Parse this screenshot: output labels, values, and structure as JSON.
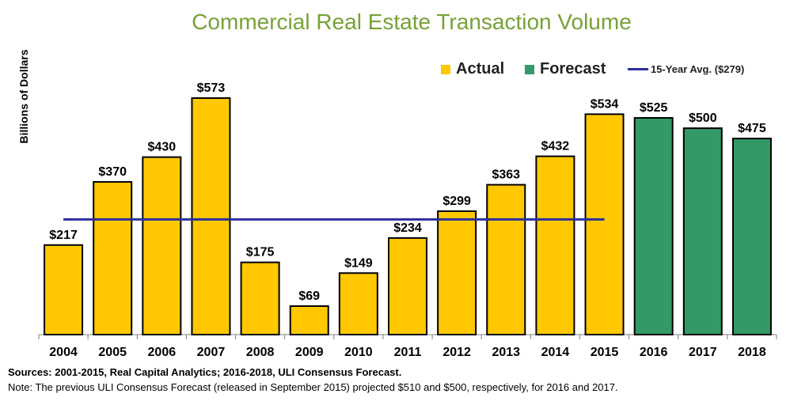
{
  "chart_data": {
    "type": "bar",
    "title": "Commercial Real Estate Transaction Volume",
    "ylabel": "Billions of Dollars",
    "xlabel": "",
    "categories": [
      "2004",
      "2005",
      "2006",
      "2007",
      "2008",
      "2009",
      "2010",
      "2011",
      "2012",
      "2013",
      "2014",
      "2015",
      "2016",
      "2017",
      "2018"
    ],
    "values": [
      217,
      370,
      430,
      573,
      175,
      69,
      149,
      234,
      299,
      363,
      432,
      534,
      525,
      500,
      475
    ],
    "value_labels": [
      "$217",
      "$370",
      "$430",
      "$573",
      "$175",
      "$69",
      "$149",
      "$234",
      "$299",
      "$363",
      "$432",
      "$534",
      "$525",
      "$500",
      "$475"
    ],
    "bar_kind": [
      "actual",
      "actual",
      "actual",
      "actual",
      "actual",
      "actual",
      "actual",
      "actual",
      "actual",
      "actual",
      "actual",
      "actual",
      "forecast",
      "forecast",
      "forecast"
    ],
    "reference_line": {
      "label": "15-Year Avg. ($279)",
      "value": 279,
      "from": "2004",
      "to": "2015",
      "color": "#2b2f9c"
    },
    "legend": {
      "position": "top-right",
      "items": [
        {
          "label": "Actual",
          "color": "#ffc800"
        },
        {
          "label": "Forecast",
          "color": "#339966"
        }
      ]
    },
    "ylim": [
      0,
      600
    ],
    "grid": false,
    "colors": {
      "actual": "#ffc800",
      "forecast": "#339966",
      "outline": "#000000",
      "title": "#77a136"
    }
  },
  "footer": {
    "sources": "Sources: 2001-2015, Real Capital Analytics; 2016-2018, ULI Consensus Forecast.",
    "note": "Note: The previous ULI Consensus Forecast (released in September 2015) projected $510 and $500, respectively, for 2016 and 2017."
  }
}
